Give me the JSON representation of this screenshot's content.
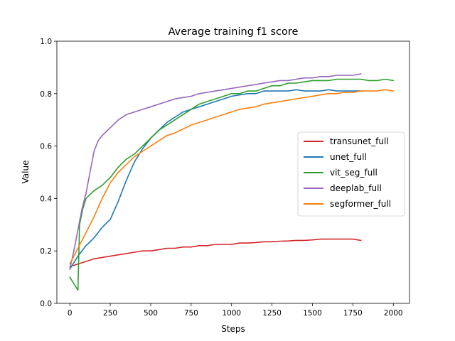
{
  "chart_data": {
    "type": "line",
    "title": "Average training f1 score",
    "xlabel": "Steps",
    "ylabel": "Value",
    "xlim": [
      -80,
      2100
    ],
    "ylim": [
      0.0,
      1.0
    ],
    "xticks": [
      0,
      250,
      500,
      750,
      1000,
      1250,
      1500,
      1750,
      2000
    ],
    "yticks": [
      0.0,
      0.2,
      0.4,
      0.6,
      0.8,
      1.0
    ],
    "xtick_labels": [
      "0",
      "250",
      "500",
      "750",
      "1000",
      "1250",
      "1500",
      "1750",
      "2000"
    ],
    "ytick_labels": [
      "0.0",
      "0.2",
      "0.4",
      "0.6",
      "0.8",
      "1.0"
    ],
    "grid": false,
    "legend_position": "center-right",
    "series": [
      {
        "name": "transunet_full",
        "color": "#d62728",
        "x": [
          0,
          50,
          100,
          150,
          200,
          250,
          300,
          350,
          400,
          450,
          500,
          550,
          600,
          650,
          700,
          750,
          800,
          850,
          900,
          950,
          1000,
          1050,
          1100,
          1150,
          1200,
          1250,
          1300,
          1350,
          1400,
          1450,
          1500,
          1550,
          1600,
          1650,
          1700,
          1750,
          1800
        ],
        "y": [
          0.14,
          0.15,
          0.16,
          0.17,
          0.175,
          0.18,
          0.185,
          0.19,
          0.195,
          0.2,
          0.2,
          0.205,
          0.21,
          0.21,
          0.215,
          0.215,
          0.22,
          0.22,
          0.225,
          0.225,
          0.225,
          0.23,
          0.23,
          0.232,
          0.235,
          0.235,
          0.237,
          0.238,
          0.24,
          0.24,
          0.242,
          0.245,
          0.245,
          0.245,
          0.245,
          0.245,
          0.24
        ]
      },
      {
        "name": "unet_full",
        "color": "#1f77b4",
        "x": [
          0,
          50,
          100,
          150,
          200,
          250,
          300,
          350,
          400,
          450,
          500,
          550,
          600,
          650,
          700,
          750,
          800,
          850,
          900,
          950,
          1000,
          1050,
          1100,
          1150,
          1200,
          1250,
          1300,
          1350,
          1400,
          1450,
          1500,
          1550,
          1600,
          1650,
          1700,
          1750,
          1800
        ],
        "y": [
          0.13,
          0.18,
          0.22,
          0.25,
          0.29,
          0.32,
          0.39,
          0.47,
          0.54,
          0.59,
          0.63,
          0.66,
          0.69,
          0.71,
          0.73,
          0.74,
          0.75,
          0.76,
          0.77,
          0.78,
          0.79,
          0.795,
          0.8,
          0.8,
          0.81,
          0.81,
          0.81,
          0.81,
          0.815,
          0.81,
          0.81,
          0.81,
          0.815,
          0.81,
          0.81,
          0.81,
          0.81
        ]
      },
      {
        "name": "vit_seg_full",
        "color": "#2ca02c",
        "x": [
          0,
          20,
          40,
          50,
          60,
          80,
          100,
          150,
          200,
          250,
          300,
          350,
          400,
          450,
          500,
          550,
          600,
          650,
          700,
          750,
          800,
          850,
          900,
          950,
          1000,
          1050,
          1100,
          1150,
          1200,
          1250,
          1300,
          1350,
          1400,
          1450,
          1500,
          1550,
          1600,
          1650,
          1700,
          1750,
          1800,
          1850,
          1900,
          1950,
          2000
        ],
        "y": [
          0.1,
          0.08,
          0.06,
          0.05,
          0.3,
          0.36,
          0.4,
          0.43,
          0.45,
          0.48,
          0.52,
          0.55,
          0.57,
          0.6,
          0.63,
          0.66,
          0.68,
          0.7,
          0.72,
          0.74,
          0.76,
          0.77,
          0.78,
          0.79,
          0.8,
          0.8,
          0.81,
          0.81,
          0.82,
          0.83,
          0.83,
          0.84,
          0.84,
          0.845,
          0.85,
          0.85,
          0.85,
          0.855,
          0.855,
          0.855,
          0.855,
          0.85,
          0.85,
          0.855,
          0.85
        ]
      },
      {
        "name": "deeplab_full",
        "color": "#9467bd",
        "x": [
          0,
          25,
          50,
          75,
          100,
          125,
          150,
          175,
          200,
          250,
          300,
          350,
          400,
          450,
          500,
          550,
          600,
          650,
          700,
          750,
          800,
          850,
          900,
          950,
          1000,
          1050,
          1100,
          1150,
          1200,
          1250,
          1300,
          1350,
          1400,
          1450,
          1500,
          1550,
          1600,
          1650,
          1700,
          1750,
          1800
        ],
        "y": [
          0.13,
          0.2,
          0.28,
          0.36,
          0.42,
          0.5,
          0.58,
          0.62,
          0.64,
          0.67,
          0.7,
          0.72,
          0.73,
          0.74,
          0.75,
          0.76,
          0.77,
          0.78,
          0.785,
          0.79,
          0.8,
          0.805,
          0.81,
          0.815,
          0.82,
          0.825,
          0.83,
          0.835,
          0.84,
          0.845,
          0.85,
          0.85,
          0.855,
          0.86,
          0.86,
          0.865,
          0.865,
          0.87,
          0.87,
          0.87,
          0.875
        ]
      },
      {
        "name": "segformer_full",
        "color": "#ff7f0e",
        "x": [
          0,
          50,
          100,
          150,
          200,
          250,
          300,
          350,
          400,
          450,
          500,
          550,
          600,
          650,
          700,
          750,
          800,
          850,
          900,
          950,
          1000,
          1050,
          1100,
          1150,
          1200,
          1250,
          1300,
          1350,
          1400,
          1450,
          1500,
          1550,
          1600,
          1650,
          1700,
          1750,
          1800,
          1850,
          1900,
          1950,
          2000
        ],
        "y": [
          0.15,
          0.21,
          0.27,
          0.33,
          0.4,
          0.46,
          0.5,
          0.53,
          0.56,
          0.58,
          0.6,
          0.62,
          0.64,
          0.65,
          0.665,
          0.68,
          0.69,
          0.7,
          0.71,
          0.72,
          0.73,
          0.74,
          0.745,
          0.75,
          0.76,
          0.765,
          0.77,
          0.775,
          0.78,
          0.785,
          0.79,
          0.795,
          0.8,
          0.8,
          0.805,
          0.805,
          0.81,
          0.81,
          0.81,
          0.815,
          0.81
        ]
      }
    ]
  }
}
